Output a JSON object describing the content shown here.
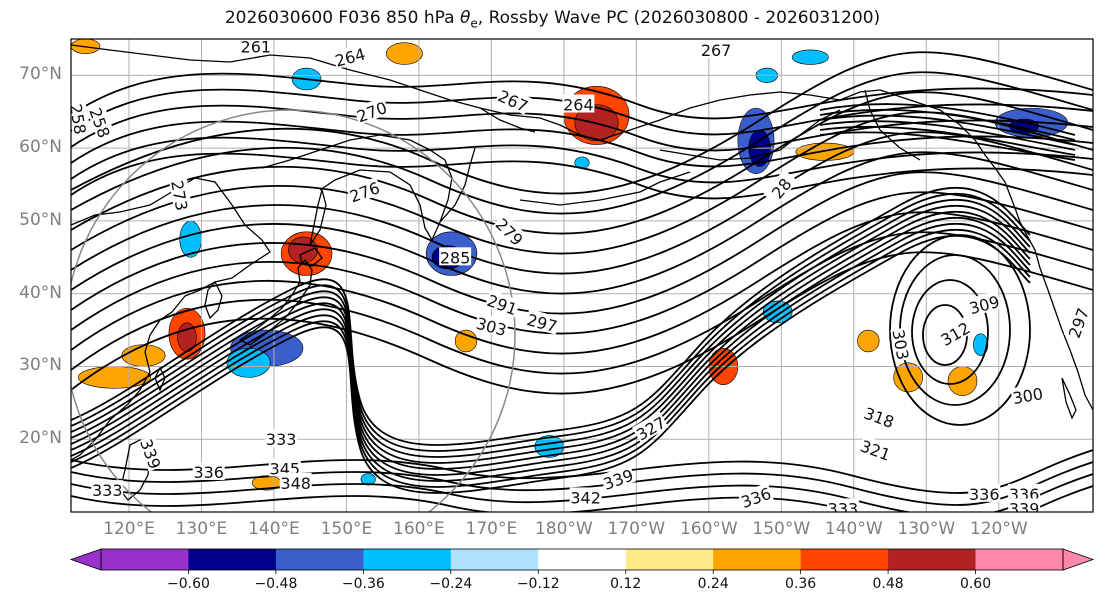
{
  "title_prefix": "2026030600 F036 850 hPa ",
  "title_symbol_theta": "θ",
  "title_symbol_sub": "e",
  "title_suffix": ", Rossby Wave PC (2026030800 - 2026031200)",
  "map_extent": {
    "lon_min": 112,
    "lon_max": 253,
    "lat_min": 10,
    "lat_max": 75
  },
  "lat_labels": [
    {
      "text": "70°N",
      "lat": 70
    },
    {
      "text": "60°N",
      "lat": 60
    },
    {
      "text": "50°N",
      "lat": 50
    },
    {
      "text": "40°N",
      "lat": 40
    },
    {
      "text": "30°N",
      "lat": 30
    },
    {
      "text": "20°N",
      "lat": 20
    }
  ],
  "lon_labels": [
    {
      "text": "120°E",
      "lon": 120
    },
    {
      "text": "130°E",
      "lon": 130
    },
    {
      "text": "140°E",
      "lon": 140
    },
    {
      "text": "150°E",
      "lon": 150
    },
    {
      "text": "160°E",
      "lon": 160
    },
    {
      "text": "170°E",
      "lon": 170
    },
    {
      "text": "180°W",
      "lon": 180
    },
    {
      "text": "170°W",
      "lon": 190
    },
    {
      "text": "160°W",
      "lon": 200
    },
    {
      "text": "150°W",
      "lon": 210
    },
    {
      "text": "140°W",
      "lon": 220
    },
    {
      "text": "130°W",
      "lon": 230
    },
    {
      "text": "120°W",
      "lon": 240
    }
  ],
  "colorbar": {
    "colors": [
      "#9932cc",
      "#00008b",
      "#3a5fcd",
      "#00bfff",
      "#b0e2ff",
      "#ffffff",
      "#ffe989",
      "#ffa500",
      "#ff4500",
      "#b22222",
      "#ff88aa"
    ],
    "under_color": "#9932cc",
    "over_color": "#ff88aa",
    "ticks": [
      "−0.60",
      "−0.48",
      "−0.36",
      "−0.24",
      "−0.12",
      "0.12",
      "0.24",
      "0.36",
      "0.48",
      "0.60"
    ]
  },
  "contour_labels": [
    {
      "text": "261",
      "lon": 137.5,
      "lat": 74.0,
      "rot": 0
    },
    {
      "text": "264",
      "lon": 150.5,
      "lat": 72.5,
      "rot": -15
    },
    {
      "text": "267",
      "lon": 201.0,
      "lat": 73.5,
      "rot": 0
    },
    {
      "text": "267",
      "lon": 173.0,
      "lat": 66.5,
      "rot": 25
    },
    {
      "text": "270",
      "lon": 153.5,
      "lat": 65.0,
      "rot": -20
    },
    {
      "text": "264",
      "lon": 182.0,
      "lat": 66.0,
      "rot": 0
    },
    {
      "text": "258",
      "lon": 113.0,
      "lat": 64.0,
      "rot": 80
    },
    {
      "text": "258",
      "lon": 116.0,
      "lat": 63.5,
      "rot": 70
    },
    {
      "text": "276",
      "lon": 152.5,
      "lat": 54.0,
      "rot": -20
    },
    {
      "text": "273",
      "lon": 127.0,
      "lat": 53.5,
      "rot": 80
    },
    {
      "text": "279",
      "lon": 172.5,
      "lat": 48.5,
      "rot": 45
    },
    {
      "text": "28",
      "lon": 210.0,
      "lat": 54.5,
      "rot": -50
    },
    {
      "text": "285",
      "lon": 165.0,
      "lat": 45.0,
      "rot": 0
    },
    {
      "text": "291",
      "lon": 171.5,
      "lat": 38.5,
      "rot": 20
    },
    {
      "text": "297",
      "lon": 177.0,
      "lat": 36.0,
      "rot": 15
    },
    {
      "text": "303",
      "lon": 170.0,
      "lat": 35.5,
      "rot": 15
    },
    {
      "text": "309",
      "lon": 238.0,
      "lat": 38.5,
      "rot": -15
    },
    {
      "text": "312",
      "lon": 234.0,
      "lat": 34.5,
      "rot": -30
    },
    {
      "text": "303",
      "lon": 226.5,
      "lat": 33.0,
      "rot": 80
    },
    {
      "text": "297",
      "lon": 251.0,
      "lat": 36.0,
      "rot": -70
    },
    {
      "text": "300",
      "lon": 244.0,
      "lat": 26.0,
      "rot": -10
    },
    {
      "text": "318",
      "lon": 223.5,
      "lat": 23.0,
      "rot": 20
    },
    {
      "text": "321",
      "lon": 223.0,
      "lat": 18.5,
      "rot": 20
    },
    {
      "text": "327",
      "lon": 192.0,
      "lat": 21.5,
      "rot": -30
    },
    {
      "text": "336",
      "lon": 131.0,
      "lat": 15.5,
      "rot": 0
    },
    {
      "text": "345",
      "lon": 141.5,
      "lat": 16.0,
      "rot": 0
    },
    {
      "text": "348",
      "lon": 143.0,
      "lat": 14.0,
      "rot": 0
    },
    {
      "text": "342",
      "lon": 183.0,
      "lat": 12.0,
      "rot": 0
    },
    {
      "text": "339",
      "lon": 187.5,
      "lat": 14.5,
      "rot": -20
    },
    {
      "text": "336",
      "lon": 206.5,
      "lat": 12.0,
      "rot": -20
    },
    {
      "text": "333",
      "lon": 218.5,
      "lat": 10.5,
      "rot": 0
    },
    {
      "text": "336",
      "lon": 238.0,
      "lat": 12.5,
      "rot": 0
    },
    {
      "text": "336",
      "lon": 243.5,
      "lat": 12.5,
      "rot": 0
    },
    {
      "text": "339",
      "lon": 243.5,
      "lat": 10.5,
      "rot": 0
    },
    {
      "text": "333",
      "lon": 117.0,
      "lat": 13.0,
      "rot": 0
    },
    {
      "text": "339",
      "lon": 123.0,
      "lat": 18.0,
      "rot": 70
    },
    {
      "text": "333",
      "lon": 141.0,
      "lat": 20.0,
      "rot": 0
    }
  ],
  "wave_guides": {
    "color": "#000000"
  },
  "anomaly_blobs": [
    {
      "lon": 184.5,
      "lat": 64.5,
      "rx": 4.5,
      "ry": 4.0,
      "level": "0.36"
    },
    {
      "lon": 184.5,
      "lat": 63.5,
      "rx": 3.0,
      "ry": 2.5,
      "level": "0.48"
    },
    {
      "lon": 144.5,
      "lat": 45.5,
      "rx": 3.5,
      "ry": 3.0,
      "level": "0.36"
    },
    {
      "lon": 144.0,
      "lat": 46.0,
      "rx": 2.0,
      "ry": 1.8,
      "level": "0.48"
    },
    {
      "lon": 128.0,
      "lat": 34.5,
      "rx": 2.5,
      "ry": 3.5,
      "level": "0.36"
    },
    {
      "lon": 128.0,
      "lat": 34.0,
      "rx": 1.3,
      "ry": 2.0,
      "level": "0.48"
    },
    {
      "lon": 202.0,
      "lat": 30.0,
      "rx": 2.0,
      "ry": 2.5,
      "level": "0.36"
    },
    {
      "lon": 118.0,
      "lat": 28.5,
      "rx": 5.0,
      "ry": 1.5,
      "level": "0.24"
    },
    {
      "lon": 122.0,
      "lat": 31.5,
      "rx": 3.0,
      "ry": 1.5,
      "level": "0.24"
    },
    {
      "lon": 216.0,
      "lat": 59.5,
      "rx": 4.0,
      "ry": 1.2,
      "level": "0.24"
    },
    {
      "lon": 227.5,
      "lat": 28.5,
      "rx": 2.0,
      "ry": 2.0,
      "level": "0.24"
    },
    {
      "lon": 222.0,
      "lat": 33.5,
      "rx": 1.5,
      "ry": 1.5,
      "level": "0.24"
    },
    {
      "lon": 235.0,
      "lat": 28.0,
      "rx": 2.0,
      "ry": 2.0,
      "level": "0.24"
    },
    {
      "lon": 139.0,
      "lat": 14.0,
      "rx": 2.0,
      "ry": 1.0,
      "level": "0.24"
    },
    {
      "lon": 166.5,
      "lat": 33.5,
      "rx": 1.5,
      "ry": 1.5,
      "level": "0.24"
    },
    {
      "lon": 158.0,
      "lat": 73.0,
      "rx": 2.5,
      "ry": 1.5,
      "level": "0.24"
    },
    {
      "lon": 114.0,
      "lat": 74.0,
      "rx": 2.0,
      "ry": 1.0,
      "level": "0.24"
    },
    {
      "lon": 164.5,
      "lat": 45.5,
      "rx": 3.5,
      "ry": 3.0,
      "level": "-0.36"
    },
    {
      "lon": 164.0,
      "lat": 45.0,
      "rx": 2.2,
      "ry": 1.6,
      "level": "-0.48"
    },
    {
      "lon": 139.0,
      "lat": 32.5,
      "rx": 5.0,
      "ry": 2.5,
      "level": "-0.36"
    },
    {
      "lon": 136.5,
      "lat": 30.5,
      "rx": 3.0,
      "ry": 2.0,
      "level": "-0.24"
    },
    {
      "lon": 206.5,
      "lat": 61.0,
      "rx": 2.5,
      "ry": 4.5,
      "level": "-0.36"
    },
    {
      "lon": 207.0,
      "lat": 60.0,
      "rx": 1.5,
      "ry": 2.5,
      "level": "-0.48"
    },
    {
      "lon": 244.5,
      "lat": 63.5,
      "rx": 5.0,
      "ry": 2.0,
      "level": "-0.36"
    },
    {
      "lon": 243.5,
      "lat": 63.0,
      "rx": 2.0,
      "ry": 1.0,
      "level": "-0.48"
    },
    {
      "lon": 144.5,
      "lat": 69.5,
      "rx": 2.0,
      "ry": 1.5,
      "level": "-0.24"
    },
    {
      "lon": 214.0,
      "lat": 72.5,
      "rx": 2.5,
      "ry": 1.0,
      "level": "-0.24"
    },
    {
      "lon": 128.5,
      "lat": 47.5,
      "rx": 1.5,
      "ry": 2.5,
      "level": "-0.24"
    },
    {
      "lon": 209.5,
      "lat": 37.5,
      "rx": 2.0,
      "ry": 1.5,
      "level": "-0.24"
    },
    {
      "lon": 237.5,
      "lat": 33.0,
      "rx": 1.0,
      "ry": 1.5,
      "level": "-0.24"
    },
    {
      "lon": 178.0,
      "lat": 19.0,
      "rx": 2.0,
      "ry": 1.5,
      "level": "-0.24"
    },
    {
      "lon": 208.0,
      "lat": 70.0,
      "rx": 1.5,
      "ry": 1.0,
      "level": "-0.24"
    },
    {
      "lon": 182.5,
      "lat": 58.0,
      "rx": 1.0,
      "ry": 0.8,
      "level": "-0.24"
    },
    {
      "lon": 153.0,
      "lat": 14.5,
      "rx": 1.0,
      "ry": 0.8,
      "level": "-0.24"
    }
  ]
}
